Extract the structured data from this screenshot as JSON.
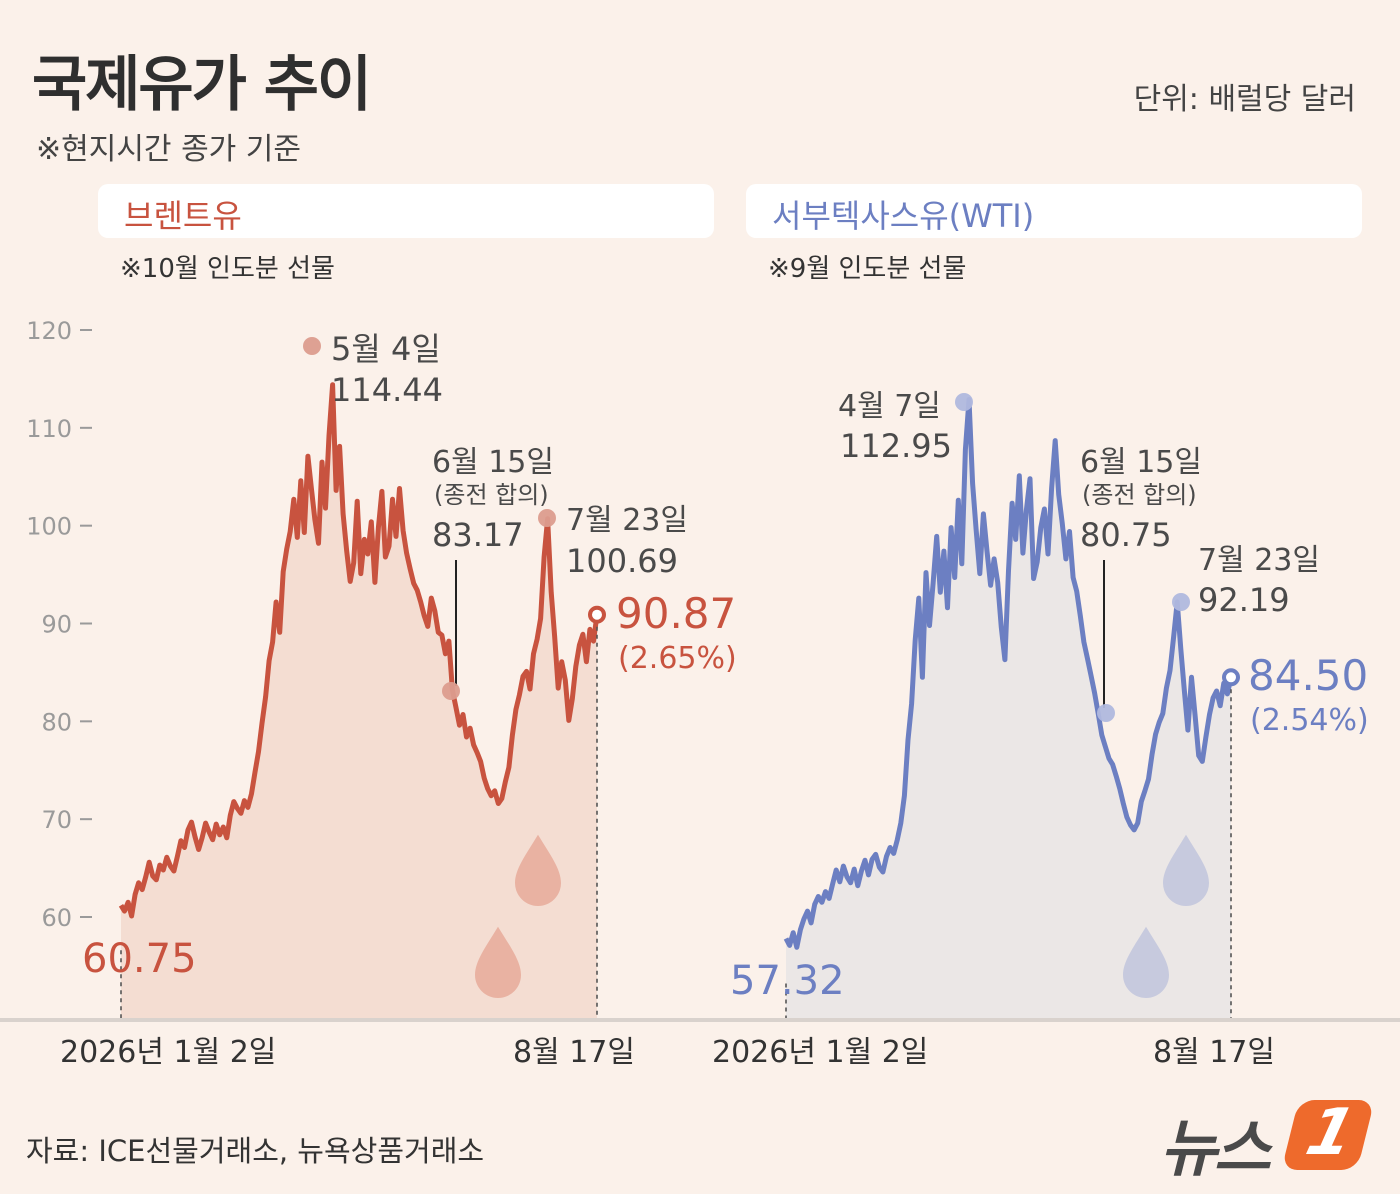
{
  "header": {
    "title": "국제유가 추이",
    "subtitle": "※현지시간 종가 기준",
    "unit": "단위: 배럴당 달러"
  },
  "footer": {
    "source": "자료: ICE선물거래소, 뉴욕상품거래소",
    "logo_text": "뉴스",
    "logo_badge": "1"
  },
  "chart_data": [
    {
      "type": "area",
      "title": "브렌트유",
      "note": "※10월 인도분 선물",
      "color": "#c8533f",
      "ylim": [
        50,
        120
      ],
      "yticks": [
        60,
        70,
        80,
        90,
        100,
        110,
        120
      ],
      "x_labels": [
        "2026년 1월 2일",
        "8월 17일"
      ],
      "start": {
        "date": "2026년 1월 2일",
        "value": 60.75,
        "label": "60.75"
      },
      "end": {
        "date": "8월 17일",
        "value": 90.87,
        "label": "90.87",
        "change": "(2.65%)"
      },
      "annotations": [
        {
          "date": "5월 4일",
          "value": 114.44,
          "lines": [
            "5월 4일",
            "114.44"
          ]
        },
        {
          "date": "6월 15일",
          "value": 83.17,
          "lines": [
            "6월 15일",
            "(종전 합의)",
            "83.17"
          ]
        },
        {
          "date": "7월 23일",
          "value": 100.69,
          "lines": [
            "7월 23일",
            "100.69"
          ]
        }
      ],
      "series": [
        61.2,
        60.6,
        61.5,
        60.1,
        62.3,
        63.5,
        62.8,
        64.1,
        65.6,
        64.2,
        63.8,
        65.3,
        64.8,
        66.1,
        65.2,
        64.7,
        66.2,
        67.8,
        67.1,
        68.9,
        69.7,
        68.2,
        66.9,
        68.1,
        69.6,
        68.7,
        67.9,
        69.5,
        68.4,
        69.2,
        68.1,
        70.4,
        71.8,
        71.1,
        70.6,
        71.9,
        71.2,
        72.6,
        74.8,
        76.9,
        79.8,
        82.5,
        86.2,
        88.1,
        92.2,
        89.1,
        95.3,
        97.6,
        99.4,
        102.7,
        98.8,
        104.6,
        99.3,
        107.1,
        103.8,
        100.6,
        98.2,
        106.5,
        101.8,
        109.2,
        114.4,
        103.6,
        108.1,
        101.2,
        97.4,
        94.3,
        96.2,
        102.5,
        95.1,
        98.6,
        97.1,
        100.4,
        94.2,
        99.8,
        103.5,
        96.8,
        97.9,
        102.7,
        98.9,
        103.8,
        99.5,
        97.2,
        95.6,
        94.1,
        93.4,
        92.2,
        90.8,
        89.7,
        92.6,
        91.3,
        89.1,
        88.8,
        86.9,
        88.2,
        83.2,
        81.4,
        79.6,
        80.7,
        78.4,
        79.3,
        77.6,
        76.8,
        75.9,
        74.2,
        73.1,
        72.4,
        72.9,
        71.6,
        72.1,
        73.8,
        75.3,
        78.6,
        81.2,
        82.7,
        84.6,
        85.1,
        83.3,
        86.9,
        88.4,
        90.5,
        96.8,
        100.7,
        93.2,
        88.6,
        83.4,
        86.1,
        84.2,
        80.1,
        82.3,
        85.6,
        87.8,
        88.9,
        86.1,
        89.4,
        88.2,
        90.9
      ]
    },
    {
      "type": "area",
      "title": "서부텍사스유(WTI)",
      "note": "※9월 인도분 선물",
      "color": "#6c7fc2",
      "ylim": [
        50,
        120
      ],
      "x_labels": [
        "2026년 1월 2일",
        "8월 17일"
      ],
      "start": {
        "date": "2026년 1월 2일",
        "value": 57.32,
        "label": "57.32"
      },
      "end": {
        "date": "8월 17일",
        "value": 84.5,
        "label": "84.50",
        "change": "(2.54%)"
      },
      "annotations": [
        {
          "date": "4월 7일",
          "value": 112.95,
          "lines": [
            "4월 7일",
            "112.95"
          ]
        },
        {
          "date": "6월 15일",
          "value": 80.75,
          "lines": [
            "6월 15일",
            "(종전 합의)",
            "80.75"
          ]
        },
        {
          "date": "7월 23일",
          "value": 92.19,
          "lines": [
            "7월 23일",
            "92.19"
          ]
        }
      ],
      "series": [
        57.8,
        57.1,
        58.4,
        56.9,
        58.7,
        59.8,
        60.6,
        59.4,
        61.3,
        62.1,
        61.5,
        62.6,
        61.9,
        63.4,
        64.8,
        63.6,
        65.2,
        64.1,
        63.5,
        64.9,
        63.2,
        64.7,
        65.8,
        64.3,
        65.9,
        66.4,
        65.1,
        64.6,
        66.2,
        67.1,
        66.5,
        67.9,
        69.6,
        72.4,
        78.1,
        81.8,
        88.3,
        92.6,
        84.5,
        95.2,
        89.8,
        94.1,
        98.9,
        93.2,
        97.4,
        91.6,
        99.8,
        94.7,
        102.6,
        96.1,
        107.8,
        112.9,
        104.3,
        99.5,
        95.1,
        101.2,
        97.4,
        93.9,
        96.6,
        94.2,
        89.6,
        86.3,
        95.4,
        102.3,
        98.6,
        105.1,
        97.2,
        101.6,
        104.8,
        94.6,
        96.3,
        99.8,
        101.7,
        97.1,
        103.8,
        108.7,
        103.2,
        100.2,
        96.6,
        99.4,
        94.7,
        93.3,
        90.8,
        88.1,
        86.4,
        84.7,
        82.9,
        80.8,
        78.6,
        77.4,
        76.2,
        75.6,
        74.4,
        73.1,
        71.6,
        70.2,
        69.4,
        68.9,
        69.6,
        71.8,
        72.9,
        74.1,
        76.6,
        78.7,
        79.9,
        80.8,
        83.4,
        85.2,
        88.6,
        92.2,
        87.4,
        83.2,
        79.1,
        84.5,
        80.6,
        76.5,
        75.9,
        78.4,
        80.7,
        82.4,
        83.1,
        81.6,
        83.9,
        82.8,
        84.5
      ]
    }
  ]
}
